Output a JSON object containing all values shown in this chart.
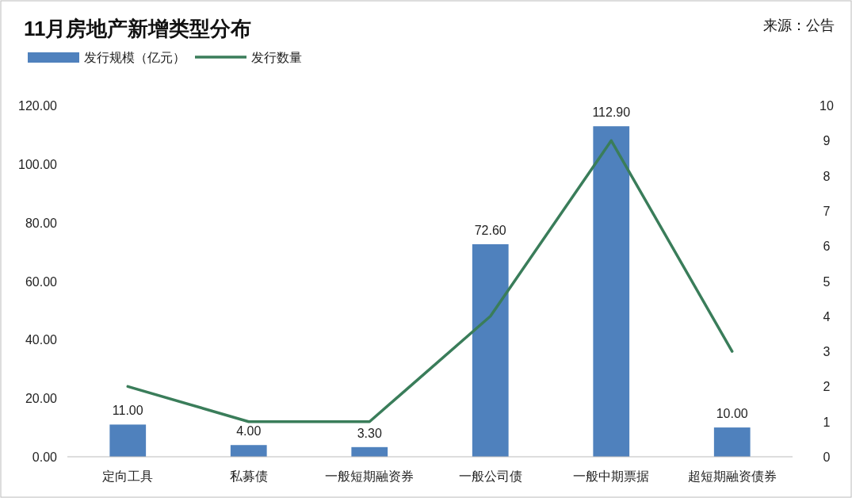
{
  "chart_data": {
    "type": "bar",
    "title": "11月房地产新增类型分布",
    "annotations": [
      "来源：公告"
    ],
    "categories": [
      "定向工具",
      "私募债",
      "一般短期融资券",
      "一般公司债",
      "一般中期票据",
      "超短期融资债券"
    ],
    "series": [
      {
        "name": "发行规模（亿元）",
        "color": "#4f81bd",
        "values": [
          11.0,
          4.0,
          3.3,
          72.6,
          112.9,
          10.0
        ],
        "value_labels": [
          "11.00",
          "4.00",
          "3.30",
          "72.60",
          "112.90",
          "10.00"
        ]
      },
      {
        "name": "发行数量",
        "type": "line",
        "axis": "y2",
        "color": "#3a7d5a",
        "values": [
          2,
          1,
          1,
          4,
          9,
          3
        ]
      }
    ],
    "ylim": [
      0,
      120
    ],
    "yticks": [
      {
        "value": 0,
        "label": "0.00"
      },
      {
        "value": 20,
        "label": "20.00"
      },
      {
        "value": 40,
        "label": "40.00"
      },
      {
        "value": 60,
        "label": "60.00"
      },
      {
        "value": 80,
        "label": "80.00"
      },
      {
        "value": 100,
        "label": "100.00"
      },
      {
        "value": 120,
        "label": "120.00"
      }
    ],
    "y2lim": [
      0,
      10
    ],
    "y2ticks": [
      0,
      1,
      2,
      3,
      4,
      5,
      6,
      7,
      8,
      9,
      10
    ],
    "legend": "top left",
    "grid": false,
    "marker": "none"
  }
}
